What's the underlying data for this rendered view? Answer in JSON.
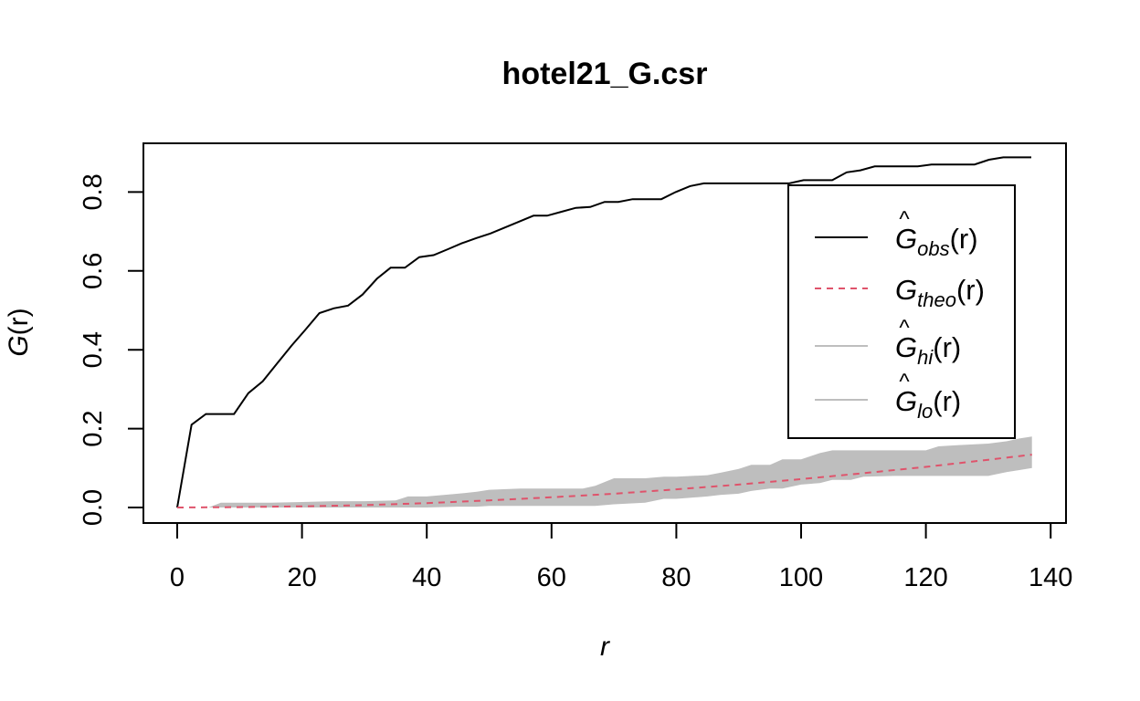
{
  "chart_data": {
    "type": "line",
    "title": "hotel21_G.csr",
    "xlabel": "r",
    "ylabel_main": "G",
    "ylabel_arg": "(r)",
    "xlim": [
      0,
      140
    ],
    "ylim": [
      0,
      0.9
    ],
    "xticks": [
      "0",
      "20",
      "40",
      "60",
      "80",
      "100",
      "120",
      "140"
    ],
    "yticks": [
      "0.0",
      "0.2",
      "0.4",
      "0.6",
      "0.8"
    ],
    "legend_position": "top-right",
    "legend": [
      {
        "main": "G",
        "hat": "^",
        "sub": "obs",
        "arg": "(r)",
        "color": "#000000",
        "dash": "solid"
      },
      {
        "main": "G",
        "hat": "",
        "sub": "theo",
        "arg": "(r)",
        "color": "#DF536B",
        "dash": "dashed"
      },
      {
        "main": "G",
        "hat": "^",
        "sub": "hi",
        "arg": "(r)",
        "color": "#BEBEBE",
        "dash": "solid"
      },
      {
        "main": "G",
        "hat": "^",
        "sub": "lo",
        "arg": "(r)",
        "color": "#BEBEBE",
        "dash": "solid"
      }
    ],
    "series": [
      {
        "name": "obs",
        "color": "#000000",
        "x": [
          0,
          2.3,
          4.6,
          6.8,
          9.1,
          11.4,
          13.7,
          16.0,
          18.3,
          20.5,
          22.8,
          25.1,
          27.4,
          29.7,
          32.0,
          34.2,
          36.5,
          38.8,
          41.1,
          43.4,
          45.6,
          47.9,
          50.2,
          52.5,
          54.8,
          57.1,
          59.3,
          61.6,
          63.9,
          66.2,
          68.5,
          70.7,
          73.0,
          75.3,
          77.6,
          79.9,
          82.2,
          84.4,
          86.7,
          89.0,
          91.3,
          93.6,
          95.8,
          98.1,
          100.4,
          102.7,
          105.0,
          107.3,
          109.5,
          111.8,
          114.1,
          116.4,
          118.7,
          120.9,
          123.2,
          125.5,
          127.8,
          130.1,
          132.4,
          134.6,
          136.9
        ],
        "y": [
          0.0,
          0.21,
          0.237,
          0.237,
          0.237,
          0.29,
          0.32,
          0.365,
          0.41,
          0.45,
          0.493,
          0.505,
          0.512,
          0.54,
          0.58,
          0.608,
          0.608,
          0.635,
          0.64,
          0.655,
          0.67,
          0.683,
          0.695,
          0.71,
          0.725,
          0.74,
          0.74,
          0.75,
          0.76,
          0.762,
          0.775,
          0.775,
          0.782,
          0.782,
          0.782,
          0.8,
          0.815,
          0.822,
          0.822,
          0.822,
          0.822,
          0.822,
          0.822,
          0.822,
          0.83,
          0.83,
          0.83,
          0.85,
          0.855,
          0.865,
          0.865,
          0.865,
          0.865,
          0.87,
          0.87,
          0.87,
          0.87,
          0.882,
          0.888,
          0.888,
          0.888
        ]
      },
      {
        "name": "theo",
        "color": "#DF536B",
        "x": [
          0,
          10,
          20,
          30,
          40,
          50,
          60,
          70,
          80,
          90,
          100,
          110,
          120,
          130,
          137
        ],
        "y": [
          0,
          0.001,
          0.003,
          0.006,
          0.011,
          0.018,
          0.026,
          0.035,
          0.046,
          0.058,
          0.072,
          0.087,
          0.103,
          0.121,
          0.134
        ]
      }
    ],
    "envelope": {
      "name": "hi/lo",
      "color": "#BEBEBE",
      "x": [
        0,
        5,
        7,
        10,
        15,
        20,
        25,
        30,
        35,
        37,
        40,
        45,
        48,
        50,
        55,
        60,
        65,
        67,
        70,
        75,
        78,
        80,
        85,
        87,
        90,
        92,
        95,
        97,
        100,
        103,
        105,
        108,
        110,
        115,
        120,
        122,
        125,
        130,
        133,
        135,
        137
      ],
      "hi": [
        0,
        0,
        0.012,
        0.012,
        0.012,
        0.014,
        0.016,
        0.016,
        0.018,
        0.028,
        0.028,
        0.035,
        0.04,
        0.045,
        0.048,
        0.048,
        0.048,
        0.055,
        0.074,
        0.074,
        0.078,
        0.078,
        0.082,
        0.088,
        0.098,
        0.108,
        0.108,
        0.122,
        0.122,
        0.138,
        0.145,
        0.145,
        0.145,
        0.145,
        0.145,
        0.155,
        0.158,
        0.162,
        0.168,
        0.175,
        0.18
      ],
      "lo": [
        0,
        0,
        0,
        0,
        0,
        0,
        0,
        0,
        0,
        0,
        0,
        0.002,
        0.002,
        0.004,
        0.004,
        0.004,
        0.004,
        0.004,
        0.008,
        0.012,
        0.022,
        0.022,
        0.028,
        0.032,
        0.035,
        0.042,
        0.048,
        0.048,
        0.058,
        0.062,
        0.07,
        0.07,
        0.078,
        0.08,
        0.08,
        0.08,
        0.08,
        0.08,
        0.09,
        0.095,
        0.1
      ]
    }
  }
}
